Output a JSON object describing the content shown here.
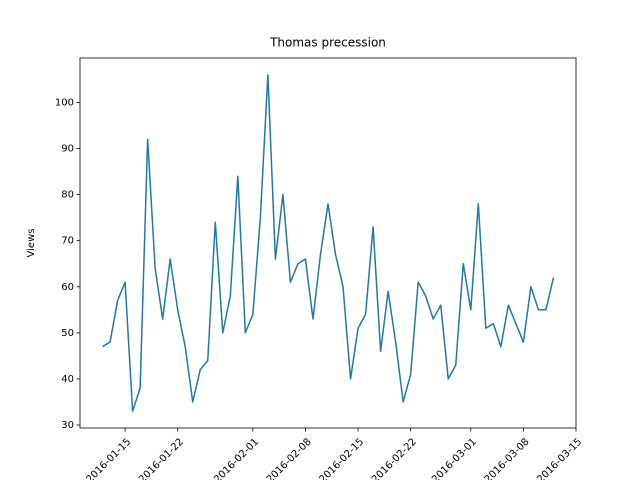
{
  "chart_data": {
    "type": "line",
    "title": "Thomas precession",
    "ylabel": "Views",
    "x": [
      "2016-01-12",
      "2016-01-13",
      "2016-01-14",
      "2016-01-15",
      "2016-01-16",
      "2016-01-17",
      "2016-01-18",
      "2016-01-19",
      "2016-01-20",
      "2016-01-21",
      "2016-01-22",
      "2016-01-23",
      "2016-01-24",
      "2016-01-25",
      "2016-01-26",
      "2016-01-27",
      "2016-01-28",
      "2016-01-29",
      "2016-01-30",
      "2016-01-31",
      "2016-02-01",
      "2016-02-02",
      "2016-02-03",
      "2016-02-04",
      "2016-02-05",
      "2016-02-06",
      "2016-02-07",
      "2016-02-08",
      "2016-02-09",
      "2016-02-10",
      "2016-02-11",
      "2016-02-12",
      "2016-02-13",
      "2016-02-14",
      "2016-02-15",
      "2016-02-16",
      "2016-02-17",
      "2016-02-18",
      "2016-02-19",
      "2016-02-20",
      "2016-02-21",
      "2016-02-22",
      "2016-02-23",
      "2016-02-24",
      "2016-02-25",
      "2016-02-26",
      "2016-02-27",
      "2016-02-28",
      "2016-02-29",
      "2016-03-01",
      "2016-03-02",
      "2016-03-03",
      "2016-03-04",
      "2016-03-05",
      "2016-03-06",
      "2016-03-07",
      "2016-03-08",
      "2016-03-09",
      "2016-03-10",
      "2016-03-11",
      "2016-03-12"
    ],
    "values": [
      47,
      48,
      57,
      61,
      33,
      38,
      92,
      64,
      53,
      66,
      55,
      47,
      35,
      42,
      44,
      74,
      50,
      58,
      84,
      50,
      54,
      75,
      106,
      66,
      80,
      61,
      65,
      66,
      53,
      67,
      78,
      67,
      60,
      40,
      51,
      54,
      73,
      46,
      59,
      48,
      35,
      41,
      61,
      58,
      53,
      56,
      40,
      43,
      65,
      55,
      78,
      51,
      52,
      47,
      56,
      52,
      48,
      60,
      55,
      55,
      62
    ],
    "color": "#1f77b4",
    "xlim": [
      "2016-01-09",
      "2016-03-15"
    ],
    "xticks": [
      "2016-01-15",
      "2016-01-22",
      "2016-02-01",
      "2016-02-08",
      "2016-02-15",
      "2016-02-22",
      "2016-03-01",
      "2016-03-08",
      "2016-03-15"
    ],
    "ylim": [
      29.35,
      109.65
    ],
    "yticks": [
      30,
      40,
      50,
      60,
      70,
      80,
      90,
      100
    ]
  }
}
